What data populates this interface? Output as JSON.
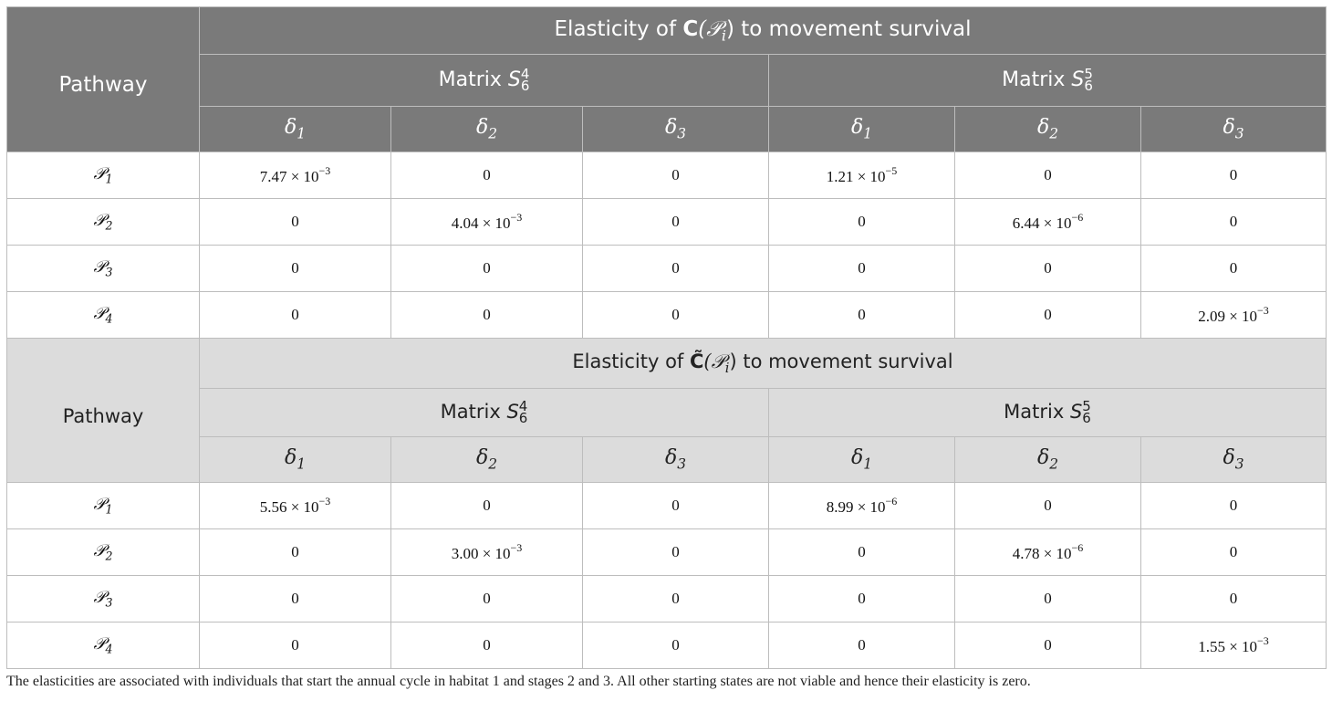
{
  "tables": [
    {
      "header": {
        "pathway_label": "Pathway",
        "title_prefix": "Elasticity of ",
        "title_symbol": "C",
        "title_arg": "(𝒫",
        "title_arg_sub": "i",
        "title_suffix": ") to movement survival",
        "matrix_label": "Matrix ",
        "matrices": [
          {
            "base": "S",
            "sup": "4",
            "sub": "6"
          },
          {
            "base": "S",
            "sup": "5",
            "sub": "6"
          }
        ],
        "deltas": [
          {
            "base": "δ",
            "sub": "1"
          },
          {
            "base": "δ",
            "sub": "2"
          },
          {
            "base": "δ",
            "sub": "3"
          },
          {
            "base": "δ",
            "sub": "1"
          },
          {
            "base": "δ",
            "sub": "2"
          },
          {
            "base": "δ",
            "sub": "3"
          }
        ]
      },
      "rows": [
        {
          "path": "𝒫",
          "sub": "1",
          "cells": [
            {
              "m": "7.47 × 10",
              "e": "−3"
            },
            {
              "v": "0"
            },
            {
              "v": "0"
            },
            {
              "m": "1.21 × 10",
              "e": "−5"
            },
            {
              "v": "0"
            },
            {
              "v": "0"
            }
          ]
        },
        {
          "path": "𝒫",
          "sub": "2",
          "cells": [
            {
              "v": "0"
            },
            {
              "m": "4.04 × 10",
              "e": "−3"
            },
            {
              "v": "0"
            },
            {
              "v": "0"
            },
            {
              "m": "6.44 × 10",
              "e": "−6"
            },
            {
              "v": "0"
            }
          ]
        },
        {
          "path": "𝒫",
          "sub": "3",
          "cells": [
            {
              "v": "0"
            },
            {
              "v": "0"
            },
            {
              "v": "0"
            },
            {
              "v": "0"
            },
            {
              "v": "0"
            },
            {
              "v": "0"
            }
          ]
        },
        {
          "path": "𝒫",
          "sub": "4",
          "cells": [
            {
              "v": "0"
            },
            {
              "v": "0"
            },
            {
              "v": "0"
            },
            {
              "v": "0"
            },
            {
              "v": "0"
            },
            {
              "m": "2.09 × 10",
              "e": "−3"
            }
          ]
        }
      ]
    },
    {
      "header": {
        "pathway_label": "Pathway",
        "title_prefix": "Elasticity of ",
        "title_symbol": "C̃",
        "title_arg": "(𝒫",
        "title_arg_sub": "i",
        "title_suffix": ") to movement survival",
        "matrix_label": "Matrix ",
        "matrices": [
          {
            "base": "S",
            "sup": "4",
            "sub": "6"
          },
          {
            "base": "S",
            "sup": "5",
            "sub": "6"
          }
        ],
        "deltas": [
          {
            "base": "δ",
            "sub": "1"
          },
          {
            "base": "δ",
            "sub": "2"
          },
          {
            "base": "δ",
            "sub": "3"
          },
          {
            "base": "δ",
            "sub": "1"
          },
          {
            "base": "δ",
            "sub": "2"
          },
          {
            "base": "δ",
            "sub": "3"
          }
        ]
      },
      "rows": [
        {
          "path": "𝒫",
          "sub": "1",
          "cells": [
            {
              "m": "5.56 × 10",
              "e": "−3"
            },
            {
              "v": "0"
            },
            {
              "v": "0"
            },
            {
              "m": "8.99 × 10",
              "e": "−6"
            },
            {
              "v": "0"
            },
            {
              "v": "0"
            }
          ]
        },
        {
          "path": "𝒫",
          "sub": "2",
          "cells": [
            {
              "v": "0"
            },
            {
              "m": "3.00 × 10",
              "e": "−3"
            },
            {
              "v": "0"
            },
            {
              "v": "0"
            },
            {
              "m": "4.78 × 10",
              "e": "−6"
            },
            {
              "v": "0"
            }
          ]
        },
        {
          "path": "𝒫",
          "sub": "3",
          "cells": [
            {
              "v": "0"
            },
            {
              "v": "0"
            },
            {
              "v": "0"
            },
            {
              "v": "0"
            },
            {
              "v": "0"
            },
            {
              "v": "0"
            }
          ]
        },
        {
          "path": "𝒫",
          "sub": "4",
          "cells": [
            {
              "v": "0"
            },
            {
              "v": "0"
            },
            {
              "v": "0"
            },
            {
              "v": "0"
            },
            {
              "v": "0"
            },
            {
              "m": "1.55 × 10",
              "e": "−3"
            }
          ]
        }
      ]
    }
  ],
  "footnote": "The elasticities are associated with individuals that start the annual cycle in habitat 1 and stages 2 and 3. All other starting states are not viable and hence their elasticity is zero."
}
